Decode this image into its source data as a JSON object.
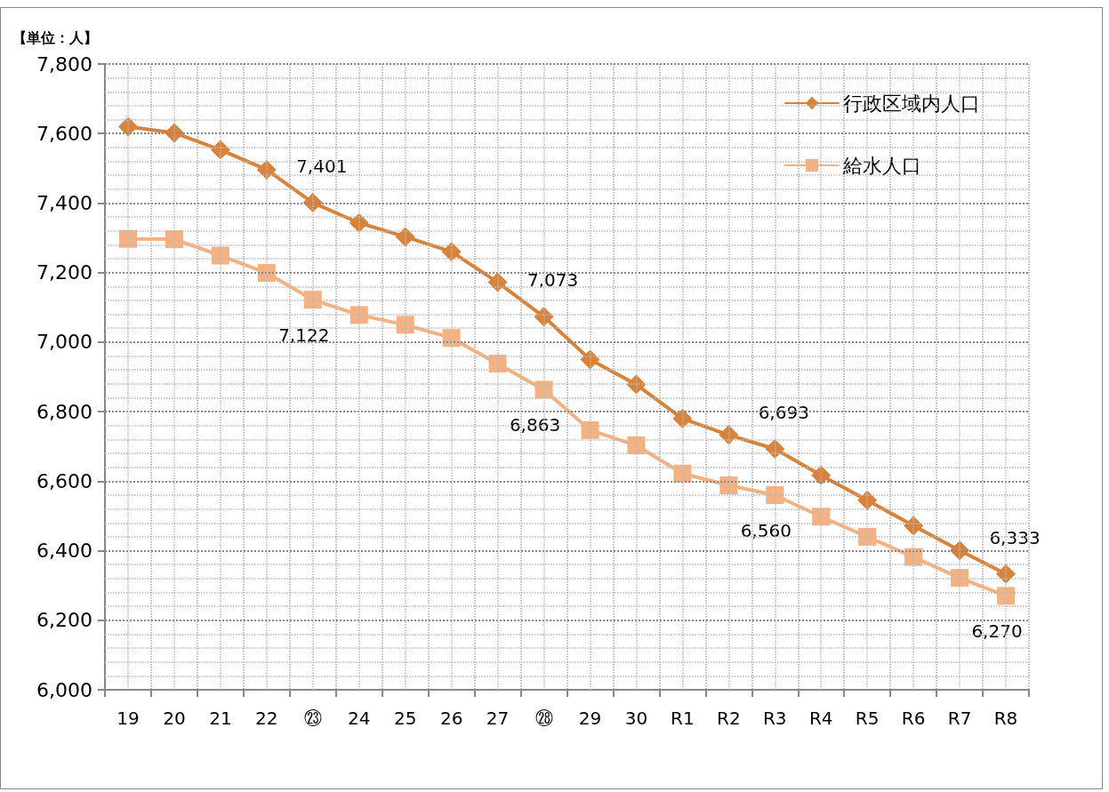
{
  "chart_data": {
    "type": "line",
    "ylabel": "【単位：人】",
    "categories": [
      "19",
      "20",
      "21",
      "22",
      "㉓",
      "24",
      "25",
      "26",
      "27",
      "㉘",
      "29",
      "30",
      "R1",
      "R2",
      "R3",
      "R4",
      "R5",
      "R6",
      "R7",
      "R8"
    ],
    "series": [
      {
        "name": "行政区域内人口",
        "color": "#d9823b",
        "marker": "diamond",
        "values": [
          7620,
          7602,
          7553,
          7496,
          7401,
          7343,
          7303,
          7260,
          7172,
          7073,
          6950,
          6878,
          6780,
          6733,
          6693,
          6617,
          6545,
          6472,
          6401,
          6333
        ],
        "value_labels": [
          null,
          null,
          null,
          null,
          "7,401",
          null,
          null,
          null,
          null,
          "7,073",
          null,
          null,
          null,
          null,
          "6,693",
          null,
          null,
          null,
          null,
          "6,333"
        ]
      },
      {
        "name": "給水人口",
        "color": "#f4b183",
        "marker": "square",
        "values": [
          7297,
          7296,
          7249,
          7199,
          7122,
          7078,
          7050,
          7012,
          6938,
          6863,
          6747,
          6703,
          6622,
          6588,
          6560,
          6498,
          6440,
          6382,
          6322,
          6270
        ],
        "value_labels": [
          null,
          null,
          null,
          null,
          "7,122",
          null,
          null,
          null,
          null,
          "6,863",
          null,
          null,
          null,
          null,
          "6,560",
          null,
          null,
          null,
          null,
          "6,270"
        ]
      }
    ],
    "ylim": [
      6000,
      7800
    ],
    "yticks": [
      {
        "value": 6000,
        "label": "6,000"
      },
      {
        "value": 6200,
        "label": "6,200"
      },
      {
        "value": 6400,
        "label": "6,400"
      },
      {
        "value": 6600,
        "label": "6,600"
      },
      {
        "value": 6800,
        "label": "6,800"
      },
      {
        "value": 7000,
        "label": "7,000"
      },
      {
        "value": 7200,
        "label": "7,200"
      },
      {
        "value": 7400,
        "label": "7,400"
      },
      {
        "value": 7600,
        "label": "7,600"
      },
      {
        "value": 7800,
        "label": "7,800"
      }
    ],
    "grid": true,
    "legend": "top right",
    "line_style": "solid"
  }
}
